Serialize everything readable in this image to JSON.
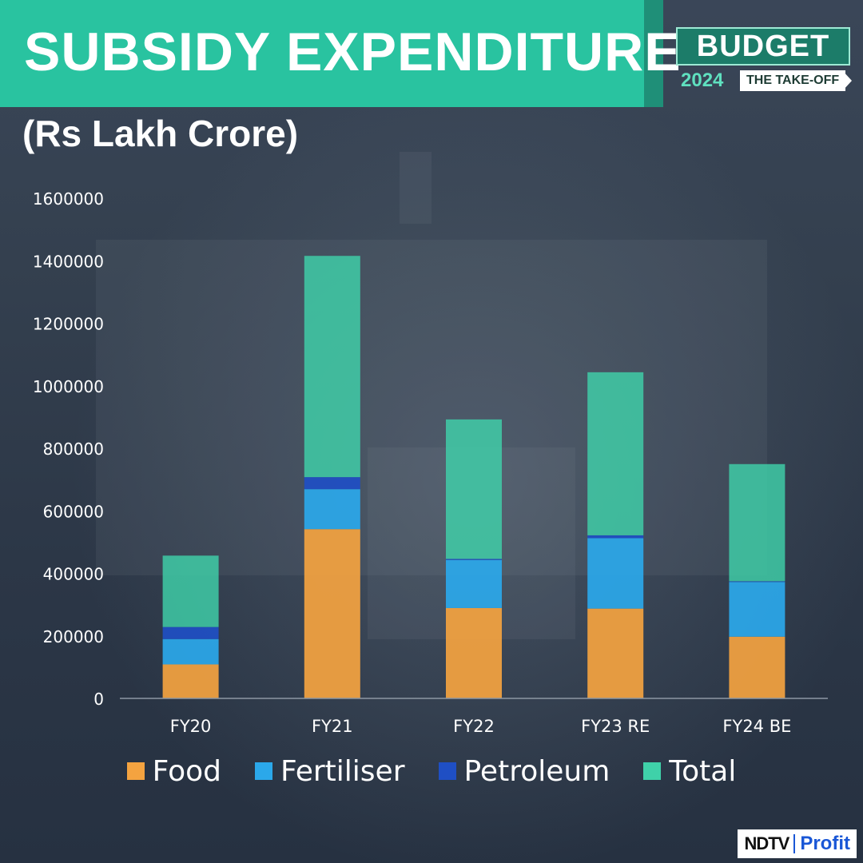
{
  "header": {
    "title": "SUBSIDY EXPENDITURE",
    "subtitle": "(Rs Lakh Crore)"
  },
  "badge": {
    "line1": "BUDGET",
    "year": "2024",
    "tagline": "THE TAKE-OFF"
  },
  "brand": {
    "ndtv": "NDTV",
    "profit": "Profit"
  },
  "colors": {
    "food": "#f4a340",
    "fertiliser": "#2ba8ea",
    "petroleum": "#1f4fc4",
    "total": "#3fd1a9",
    "accent": "#29c3a0"
  },
  "chart_data": {
    "type": "bar",
    "stacked": true,
    "categories": [
      "FY20",
      "FY21",
      "FY22",
      "FY23 RE",
      "FY24 BE"
    ],
    "series": [
      {
        "name": "Food",
        "values": [
          108688,
          541330,
          288969,
          287194,
          197350
        ]
      },
      {
        "name": "Fertiliser",
        "values": [
          81124,
          127922,
          153758,
          225220,
          175100
        ]
      },
      {
        "name": "Petroleum",
        "values": [
          38529,
          38455,
          3423,
          9171,
          2257
        ]
      },
      {
        "name": "Total",
        "values": [
          228341,
          707707,
          446150,
          521585,
          374707
        ]
      }
    ],
    "ylim": [
      0,
      1600000
    ],
    "yticks": [
      0,
      200000,
      400000,
      600000,
      800000,
      1000000,
      1200000,
      1400000,
      1600000
    ],
    "grid": false,
    "legend_position": "bottom"
  }
}
